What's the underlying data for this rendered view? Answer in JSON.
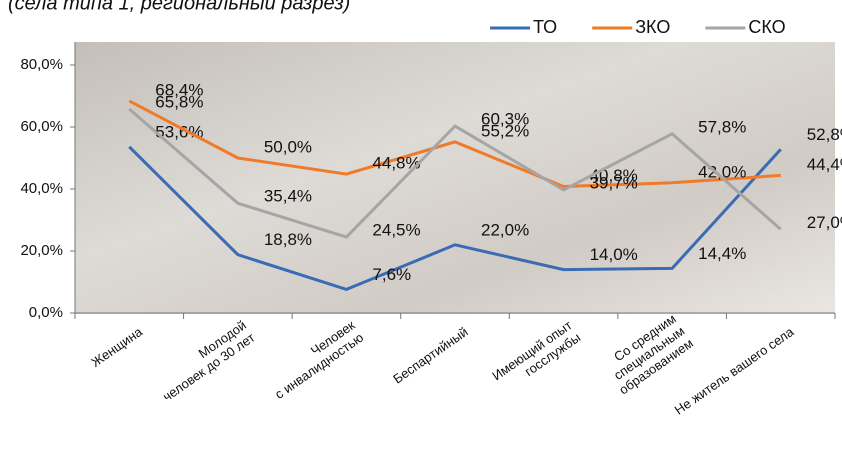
{
  "chart_data": {
    "type": "line",
    "title": "(села типа 1, региональный разрез)",
    "categories": [
      [
        "Женщина"
      ],
      [
        "Молодой",
        "человек до 30 лет"
      ],
      [
        "Человек",
        "с инвалидностью"
      ],
      [
        "Беспартийный"
      ],
      [
        "Имеющий опыт",
        "госслужбы"
      ],
      [
        "Со средним",
        "специальным",
        "образованием"
      ],
      [
        "Не житель вашего села"
      ]
    ],
    "series": [
      {
        "name": "ТО",
        "color": "#3a6bb5",
        "values": [
          53.6,
          18.8,
          7.6,
          22.0,
          14.0,
          14.4,
          52.8
        ],
        "value_labels": [
          "53,6%",
          "18,8%",
          "7,6%",
          "22,0%",
          "14,0%",
          "14,4%",
          "52,8%"
        ]
      },
      {
        "name": "ЗКО",
        "color": "#ef7b2a",
        "values": [
          68.4,
          50.0,
          44.8,
          55.2,
          40.8,
          42.0,
          44.4
        ],
        "value_labels": [
          "68,4%",
          "50,0%",
          "44,8%",
          "55,2%",
          "40,8%",
          "42,0%",
          "44,4%"
        ]
      },
      {
        "name": "СКО",
        "color": "#a5a5a5",
        "values": [
          65.8,
          35.4,
          24.5,
          60.3,
          39.7,
          57.8,
          27.0
        ],
        "value_labels": [
          "65,8%",
          "35,4%",
          "24,5%",
          "60,3%",
          "39,7%",
          "57,8%",
          "27,0%"
        ]
      }
    ],
    "ylim": [
      0,
      80
    ],
    "yticks": [
      {
        "value": 0,
        "label": "0,0%"
      },
      {
        "value": 20,
        "label": "20,0%"
      },
      {
        "value": 40,
        "label": "40,0%"
      },
      {
        "value": 60,
        "label": "60,0%"
      },
      {
        "value": 80,
        "label": "80,0%"
      }
    ],
    "legend": "top-right"
  }
}
